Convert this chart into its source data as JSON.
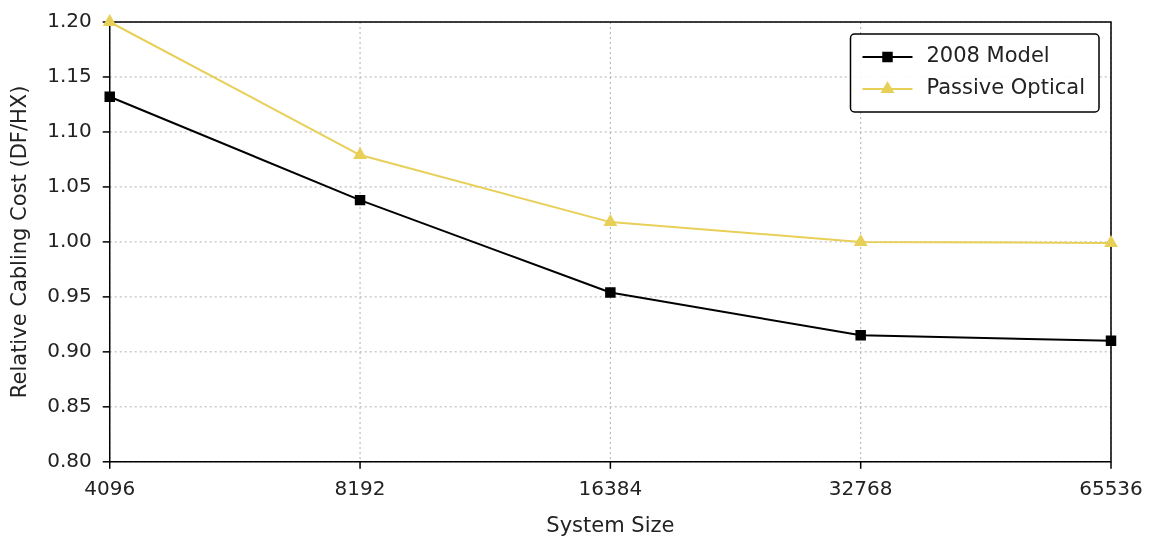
{
  "chart_data": {
    "type": "line",
    "xlabel": "System Size",
    "ylabel": "Relative Cabling Cost (DF/HX)",
    "x": [
      4096,
      8192,
      16384,
      32768,
      65536
    ],
    "log": "x",
    "xlim": [
      4096,
      65536
    ],
    "xticks": [
      4096,
      8192,
      16384,
      32768,
      65536
    ],
    "ylim": [
      0.8,
      1.2
    ],
    "yticks": [
      {
        "value": 0.8,
        "label": "0.80"
      },
      {
        "value": 0.85,
        "label": "0.85"
      },
      {
        "value": 0.9,
        "label": "0.90"
      },
      {
        "value": 0.95,
        "label": "0.95"
      },
      {
        "value": 1.0,
        "label": "1.00"
      },
      {
        "value": 1.05,
        "label": "1.05"
      },
      {
        "value": 1.1,
        "label": "1.10"
      },
      {
        "value": 1.15,
        "label": "1.15"
      },
      {
        "value": 1.2,
        "label": "1.20"
      }
    ],
    "grid": true,
    "line_style": "solid",
    "legend": "top right",
    "series": [
      {
        "name": "2008 Model",
        "color": "#000000",
        "marker": "square",
        "values": [
          1.132,
          1.038,
          0.954,
          0.915,
          0.91
        ]
      },
      {
        "name": "Passive Optical",
        "color": "#e8cf58",
        "marker": "triangle",
        "values": [
          1.2,
          1.079,
          1.018,
          1.0,
          0.999
        ]
      }
    ]
  }
}
